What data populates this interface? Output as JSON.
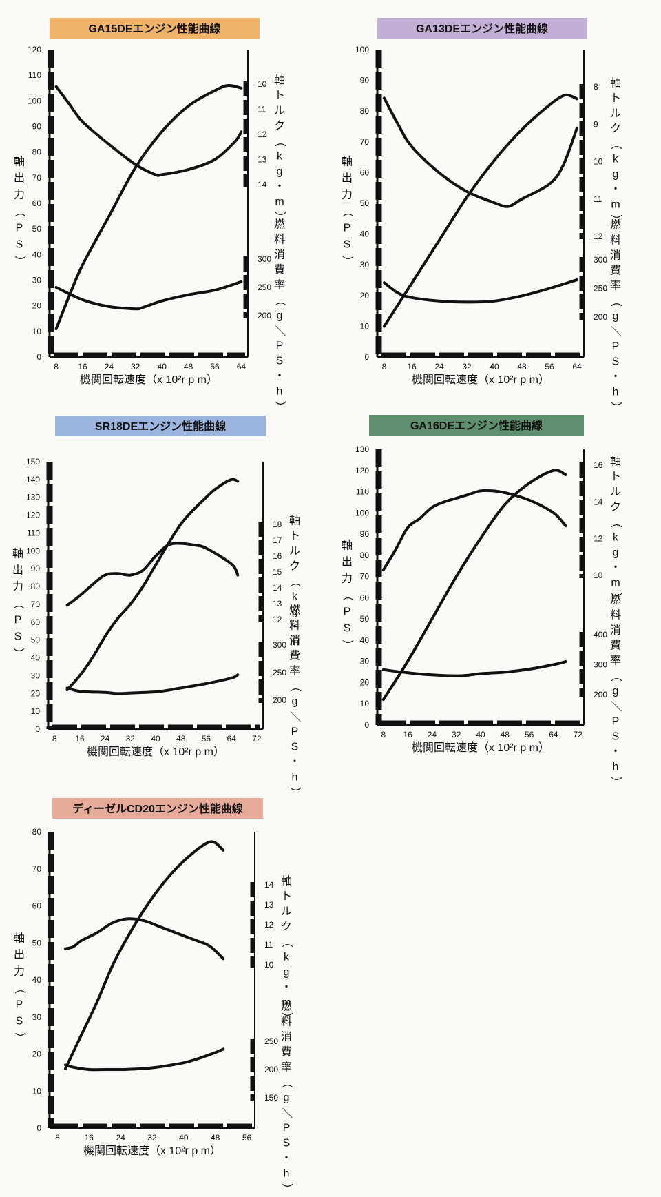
{
  "chart_data": [
    {
      "type": "line",
      "title": "GA15DEエンジン性能曲線",
      "title_color": "#f0b36a",
      "xlabel": "機関回転速度（x 10²r p m）",
      "y_left_label": "軸出力（PS）",
      "y_right_top_label": "軸トルク（kg・m）",
      "y_right_bottom_label": "燃料消費率（g／PS・h）",
      "xlim": [
        6,
        66
      ],
      "x_ticks": [
        "8",
        "16",
        "24",
        "32",
        "40",
        "48",
        "56",
        "64"
      ],
      "ylim_left": [
        0,
        120
      ],
      "y_left_ticks": [
        "0",
        "10",
        "20",
        "30",
        "40",
        "50",
        "60",
        "70",
        "80",
        "90",
        "100",
        "110",
        "120"
      ],
      "torque_ylim": [
        10,
        14
      ],
      "torque_ticks": [
        "10",
        "11",
        "12",
        "13",
        "14"
      ],
      "fuel_ylim": [
        200,
        300
      ],
      "fuel_ticks": [
        "200",
        "250",
        "300"
      ],
      "series": [
        {
          "x": [
            8,
            12,
            16,
            24,
            32,
            40,
            48,
            56,
            60,
            64
          ],
          "values": [
            11,
            24,
            36,
            55,
            74,
            88,
            98,
            104,
            106,
            105
          ]
        },
        {
          "x": [
            8,
            12,
            16,
            24,
            32,
            38,
            40,
            48,
            56,
            62,
            64
          ],
          "values": [
            10.1,
            10.8,
            11.5,
            12.4,
            13.2,
            13.6,
            13.6,
            13.4,
            13.0,
            12.3,
            11.9
          ]
        },
        {
          "x": [
            8,
            16,
            24,
            32,
            34,
            40,
            48,
            56,
            64
          ],
          "values": [
            250,
            228,
            216,
            212,
            214,
            226,
            237,
            245,
            260
          ]
        }
      ]
    },
    {
      "type": "line",
      "title": "GA13DEエンジン性能曲線",
      "title_color": "#c3afd6",
      "xlabel": "機関回転速度（x 10²r p m）",
      "y_left_label": "軸出力（PS）",
      "y_right_top_label": "軸トルク（kg・m）",
      "y_right_bottom_label": "燃料消費率（g／PS・h）",
      "xlim": [
        6,
        66
      ],
      "x_ticks": [
        "8",
        "16",
        "24",
        "32",
        "40",
        "48",
        "56",
        "64"
      ],
      "ylim_left": [
        0,
        100
      ],
      "y_left_ticks": [
        "0",
        "10",
        "20",
        "30",
        "40",
        "50",
        "60",
        "70",
        "80",
        "90",
        "100"
      ],
      "torque_ylim": [
        8,
        12
      ],
      "torque_ticks": [
        "8",
        "9",
        "10",
        "11",
        "12"
      ],
      "fuel_ylim": [
        200,
        300
      ],
      "fuel_ticks": [
        "200",
        "250",
        "300"
      ],
      "series": [
        {
          "x": [
            8,
            16,
            24,
            32,
            40,
            48,
            56,
            60,
            62,
            64
          ],
          "values": [
            10,
            24,
            38,
            52,
            64,
            74,
            82,
            85,
            85,
            84
          ]
        },
        {
          "x": [
            8,
            12,
            16,
            24,
            32,
            40,
            44,
            48,
            56,
            60,
            64
          ],
          "values": [
            8.3,
            9.0,
            9.6,
            10.3,
            10.8,
            11.1,
            11.2,
            11.0,
            10.6,
            10.1,
            9.1
          ]
        },
        {
          "x": [
            8,
            12,
            16,
            24,
            32,
            40,
            48,
            56,
            64
          ],
          "values": [
            260,
            242,
            234,
            228,
            226,
            228,
            237,
            250,
            265
          ]
        }
      ]
    },
    {
      "type": "line",
      "title": "SR18DEエンジン性能曲線",
      "title_color": "#9ab4de",
      "xlabel": "機関回転速度（x 10²r p m）",
      "y_left_label": "軸出力（PS）",
      "y_right_top_label": "軸トルク（kg・m）",
      "y_right_bottom_label": "燃料消費率（g／PS・h）",
      "xlim": [
        6,
        74
      ],
      "x_ticks": [
        "8",
        "16",
        "24",
        "32",
        "40",
        "48",
        "56",
        "64",
        "72"
      ],
      "ylim_left": [
        0,
        150
      ],
      "y_left_ticks": [
        "0",
        "10",
        "20",
        "30",
        "40",
        "50",
        "60",
        "70",
        "80",
        "90",
        "100",
        "110",
        "120",
        "130",
        "140",
        "150"
      ],
      "torque_ylim": [
        12,
        18
      ],
      "torque_ticks": [
        "12",
        "13",
        "14",
        "15",
        "16",
        "17",
        "18"
      ],
      "fuel_ylim": [
        200,
        300
      ],
      "fuel_ticks": [
        "200",
        "250",
        "300"
      ],
      "series": [
        {
          "x": [
            12,
            16,
            20,
            24,
            28,
            32,
            36,
            40,
            48,
            56,
            60,
            64,
            66
          ],
          "values": [
            22,
            30,
            40,
            52,
            62,
            70,
            80,
            92,
            115,
            130,
            136,
            140,
            139
          ]
        },
        {
          "x": [
            12,
            16,
            20,
            24,
            28,
            32,
            36,
            40,
            44,
            48,
            52,
            56,
            64,
            66
          ],
          "values": [
            12.9,
            13.5,
            14.2,
            14.8,
            14.9,
            14.8,
            15.1,
            16.0,
            16.7,
            16.8,
            16.7,
            16.5,
            15.5,
            14.8
          ]
        },
        {
          "x": [
            12,
            16,
            24,
            28,
            32,
            40,
            44,
            48,
            56,
            64,
            66
          ],
          "values": [
            222,
            216,
            214,
            212,
            213,
            215,
            218,
            222,
            230,
            240,
            246
          ]
        }
      ]
    },
    {
      "type": "line",
      "title": "GA16DEエンジン性能曲線",
      "title_color": "#5e8f6e",
      "xlabel": "機関回転速度（x 10²r p m）",
      "y_left_label": "軸出力（PS）",
      "y_right_top_label": "軸トルク（kg・m）",
      "y_right_bottom_label": "燃料消費率（g／PS・h）",
      "xlim": [
        6,
        74
      ],
      "x_ticks": [
        "8",
        "16",
        "24",
        "32",
        "40",
        "48",
        "56",
        "64",
        "72"
      ],
      "ylim_left": [
        0,
        130
      ],
      "y_left_ticks": [
        "0",
        "10",
        "20",
        "30",
        "40",
        "50",
        "60",
        "70",
        "80",
        "90",
        "100",
        "110",
        "120",
        "130"
      ],
      "torque_ylim": [
        10,
        16
      ],
      "torque_ticks": [
        "10",
        "12",
        "14",
        "16"
      ],
      "fuel_ylim": [
        200,
        400
      ],
      "fuel_ticks": [
        "200",
        "300",
        "400"
      ],
      "series": [
        {
          "x": [
            8,
            16,
            24,
            32,
            40,
            48,
            56,
            64,
            68
          ],
          "values": [
            12,
            30,
            50,
            70,
            88,
            104,
            114,
            120,
            118
          ]
        },
        {
          "x": [
            8,
            12,
            16,
            20,
            24,
            28,
            32,
            36,
            40,
            44,
            48,
            56,
            64,
            68
          ],
          "values": [
            10.3,
            11.4,
            12.6,
            13.1,
            13.7,
            14.0,
            14.2,
            14.4,
            14.6,
            14.6,
            14.5,
            14.1,
            13.4,
            12.7
          ]
        },
        {
          "x": [
            8,
            16,
            24,
            32,
            36,
            40,
            48,
            56,
            64,
            68
          ],
          "values": [
            283,
            273,
            266,
            263,
            265,
            270,
            275,
            285,
            300,
            310
          ]
        }
      ]
    },
    {
      "type": "line",
      "title": "ディーゼルCD20エンジン性能曲線",
      "title_color": "#e6aa98",
      "xlabel": "機関回転速度（x 10²r p m）",
      "y_left_label": "軸出力（PS）",
      "y_right_top_label": "軸トルク（kg・m）",
      "y_right_bottom_label": "燃料消費率（g／PS・h）",
      "xlim": [
        6,
        58
      ],
      "x_ticks": [
        "8",
        "16",
        "24",
        "32",
        "40",
        "48",
        "56"
      ],
      "ylim_left": [
        0,
        80
      ],
      "y_left_ticks": [
        "0",
        "10",
        "20",
        "30",
        "40",
        "50",
        "60",
        "70",
        "80"
      ],
      "torque_ylim": [
        10,
        14
      ],
      "torque_ticks": [
        "10",
        "11",
        "12",
        "13",
        "14"
      ],
      "fuel_ylim": [
        150,
        250
      ],
      "fuel_ticks": [
        "150",
        "200",
        "250"
      ],
      "series": [
        {
          "x": [
            10,
            14,
            18,
            22,
            26,
            30,
            34,
            38,
            42,
            46,
            48,
            50
          ],
          "values": [
            16,
            25,
            34,
            44,
            52,
            59,
            65,
            70,
            74,
            77,
            77,
            75
          ]
        },
        {
          "x": [
            10,
            12,
            14,
            18,
            22,
            26,
            30,
            34,
            38,
            42,
            46,
            48,
            50
          ],
          "values": [
            10.8,
            10.9,
            11.2,
            11.6,
            12.1,
            12.3,
            12.2,
            11.9,
            11.6,
            11.3,
            11.0,
            10.7,
            10.3
          ]
        },
        {
          "x": [
            10,
            12,
            16,
            20,
            24,
            28,
            32,
            36,
            40,
            44,
            48,
            50
          ],
          "values": [
            208,
            204,
            200,
            200,
            200,
            201,
            203,
            207,
            212,
            220,
            230,
            236
          ]
        }
      ]
    }
  ]
}
